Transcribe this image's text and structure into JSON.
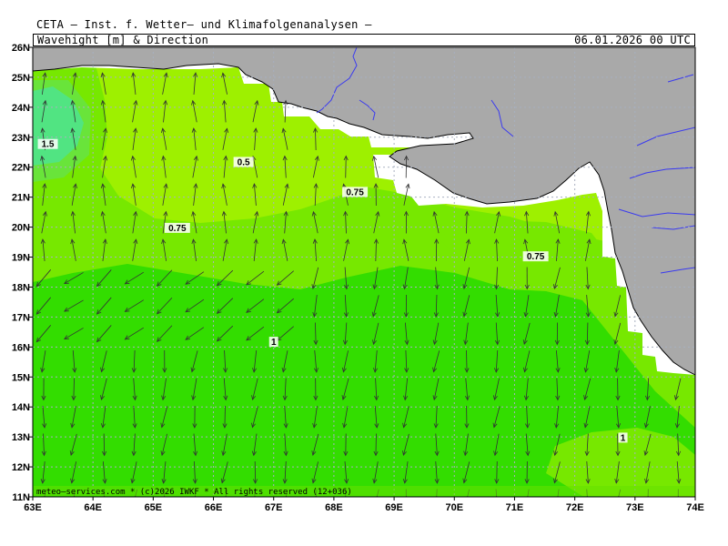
{
  "header": {
    "line1": "CETA — Inst. f. Wetter— und Klimafolgenanalysen —",
    "title": "Wavehight [m] & Direction",
    "timestamp": "06.01.2026 00 UTC"
  },
  "axes": {
    "lon_labels": [
      "63E",
      "64E",
      "65E",
      "66E",
      "67E",
      "68E",
      "69E",
      "70E",
      "71E",
      "72E",
      "73E",
      "74E"
    ],
    "lat_labels": [
      "26N",
      "25N",
      "24N",
      "23N",
      "22N",
      "21N",
      "20N",
      "19N",
      "18N",
      "17N",
      "16N",
      "15N",
      "14N",
      "13N",
      "12N",
      "11N"
    ],
    "lon_range": [
      63,
      74
    ],
    "lat_range": [
      11,
      26
    ]
  },
  "contour_labels": [
    {
      "text": "1.5",
      "lon": 63.25,
      "lat": 22.7
    },
    {
      "text": "0.5",
      "lon": 66.5,
      "lat": 22.1
    },
    {
      "text": "0.75",
      "lon": 68.35,
      "lat": 21.1
    },
    {
      "text": "0.75",
      "lon": 65.4,
      "lat": 19.9
    },
    {
      "text": "0.75",
      "lon": 71.35,
      "lat": 18.95
    },
    {
      "text": "1",
      "lon": 67.0,
      "lat": 16.1
    },
    {
      "text": "1",
      "lon": 72.8,
      "lat": 12.9
    }
  ],
  "credit": "meteo—services.com  *  (c)2026 IWKF  *  All rights reserved  (12+036)",
  "colors": {
    "land": "#a9a9a9",
    "wave_0_5": "#9ef000",
    "wave_0_75": "#77e800",
    "wave_1": "#33dd00",
    "wave_1_5": "#40e8a0",
    "rivers": "#3a3af0",
    "grid": "#a8b0c0"
  }
}
